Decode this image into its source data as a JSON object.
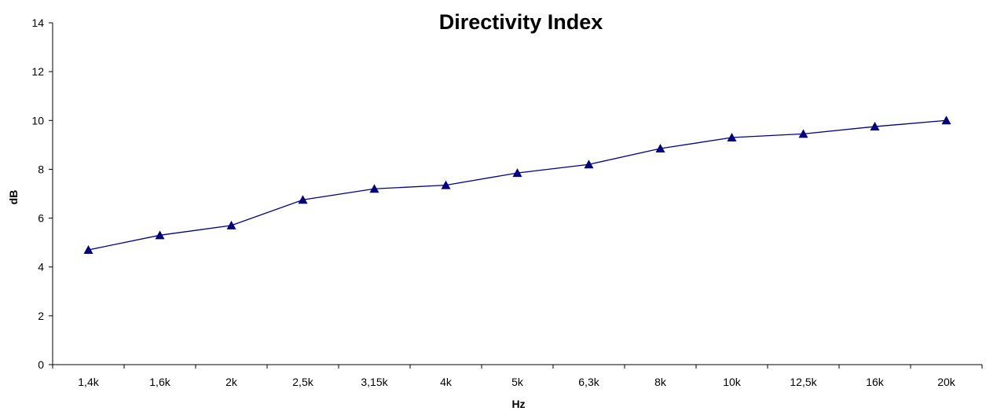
{
  "chart_data": {
    "type": "line",
    "title": "Directivity Index",
    "xlabel": "Hz",
    "ylabel": "dB",
    "categories": [
      "1,4k",
      "1,6k",
      "2k",
      "2,5k",
      "3,15k",
      "4k",
      "5k",
      "6,3k",
      "8k",
      "10k",
      "12,5k",
      "16k",
      "20k"
    ],
    "series": [
      {
        "name": "",
        "values": [
          4.7,
          5.3,
          5.7,
          6.75,
          7.2,
          7.35,
          7.85,
          8.2,
          8.85,
          9.3,
          9.45,
          9.75,
          10.0
        ]
      }
    ],
    "yticks": [
      "0",
      "2",
      "4",
      "6",
      "8",
      "10",
      "12",
      "14"
    ],
    "ylim": [
      0,
      14
    ],
    "grid": false,
    "legend": "none",
    "line_color": "#000080",
    "marker": "triangle"
  }
}
